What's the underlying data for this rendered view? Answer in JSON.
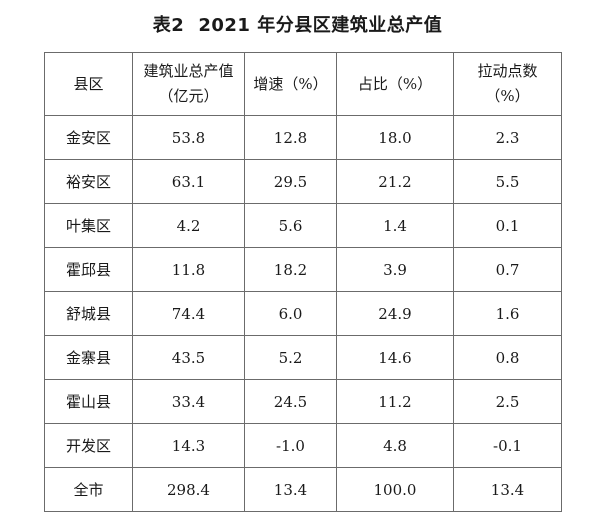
{
  "title": {
    "label": "表2",
    "text": "2021 年分县区建筑业总产值"
  },
  "table": {
    "headers": [
      {
        "line1": "县区",
        "line2": ""
      },
      {
        "line1": "建筑业总产值",
        "line2": "（亿元）"
      },
      {
        "line1": "增速（%）",
        "line2": ""
      },
      {
        "line1": "占比（%）",
        "line2": ""
      },
      {
        "line1": "拉动点数",
        "line2": "（%）"
      }
    ],
    "rows": [
      [
        "金安区",
        "53.8",
        "12.8",
        "18.0",
        "2.3"
      ],
      [
        "裕安区",
        "63.1",
        "29.5",
        "21.2",
        "5.5"
      ],
      [
        "叶集区",
        "4.2",
        "5.6",
        "1.4",
        "0.1"
      ],
      [
        "霍邱县",
        "11.8",
        "18.2",
        "3.9",
        "0.7"
      ],
      [
        "舒城县",
        "74.4",
        "6.0",
        "24.9",
        "1.6"
      ],
      [
        "金寨县",
        "43.5",
        "5.2",
        "14.6",
        "0.8"
      ],
      [
        "霍山县",
        "33.4",
        "24.5",
        "11.2",
        "2.5"
      ],
      [
        "开发区",
        "14.3",
        "-1.0",
        "4.8",
        "-0.1"
      ],
      [
        "全市",
        "298.4",
        "13.4",
        "100.0",
        "13.4"
      ]
    ]
  }
}
